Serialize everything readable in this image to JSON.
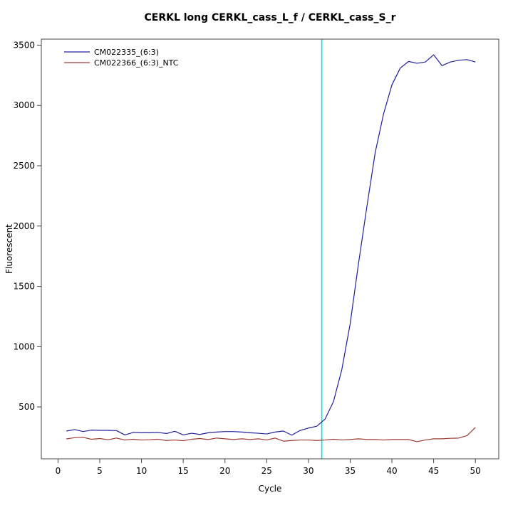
{
  "window": {
    "background": "#ffffff"
  },
  "chart_data": {
    "type": "line",
    "title": "CERKL long CERKL_cass_L_f / CERKL_cass_S_r",
    "xlabel": "Cycle",
    "ylabel": "Fluorescent",
    "xlim": [
      -2,
      52.8
    ],
    "ylim": [
      70,
      3550
    ],
    "x_ticks": [
      0,
      5,
      10,
      15,
      20,
      25,
      30,
      35,
      40,
      45,
      50
    ],
    "y_ticks": [
      500,
      1000,
      1500,
      2000,
      2500,
      3000,
      3500
    ],
    "grid": false,
    "legend_position": "topleft",
    "axis_color": "#444444",
    "text_color": "#000000",
    "threshold_line": {
      "x": 31.6,
      "color": "#00E0E0"
    },
    "x": [
      1,
      2,
      3,
      4,
      5,
      6,
      7,
      8,
      9,
      10,
      11,
      12,
      13,
      14,
      15,
      16,
      17,
      18,
      19,
      20,
      21,
      22,
      23,
      24,
      25,
      26,
      27,
      28,
      29,
      30,
      31,
      32,
      33,
      34,
      35,
      36,
      37,
      38,
      39,
      40,
      41,
      42,
      43,
      44,
      45,
      46,
      47,
      48,
      49,
      50
    ],
    "series": [
      {
        "name": "CM022335_(6:3)",
        "color": "#20209E",
        "values": [
          300,
          312,
          296,
          308,
          306,
          306,
          304,
          268,
          288,
          286,
          286,
          288,
          280,
          298,
          268,
          282,
          272,
          286,
          292,
          296,
          296,
          292,
          286,
          282,
          276,
          292,
          300,
          266,
          305,
          325,
          340,
          400,
          545,
          810,
          1190,
          1690,
          2160,
          2610,
          2930,
          3170,
          3310,
          3365,
          3350,
          3360,
          3420,
          3330,
          3360,
          3375,
          3380,
          3360
        ]
      },
      {
        "name": "CM022366_(6:3)_NTC",
        "color": "#9E3A32",
        "values": [
          235,
          245,
          248,
          232,
          238,
          228,
          242,
          226,
          232,
          226,
          228,
          232,
          222,
          226,
          220,
          232,
          238,
          230,
          242,
          236,
          230,
          236,
          230,
          236,
          226,
          242,
          216,
          222,
          226,
          226,
          222,
          226,
          232,
          226,
          230,
          236,
          230,
          230,
          226,
          230,
          230,
          230,
          212,
          226,
          236,
          236,
          240,
          242,
          262,
          330
        ]
      }
    ]
  }
}
